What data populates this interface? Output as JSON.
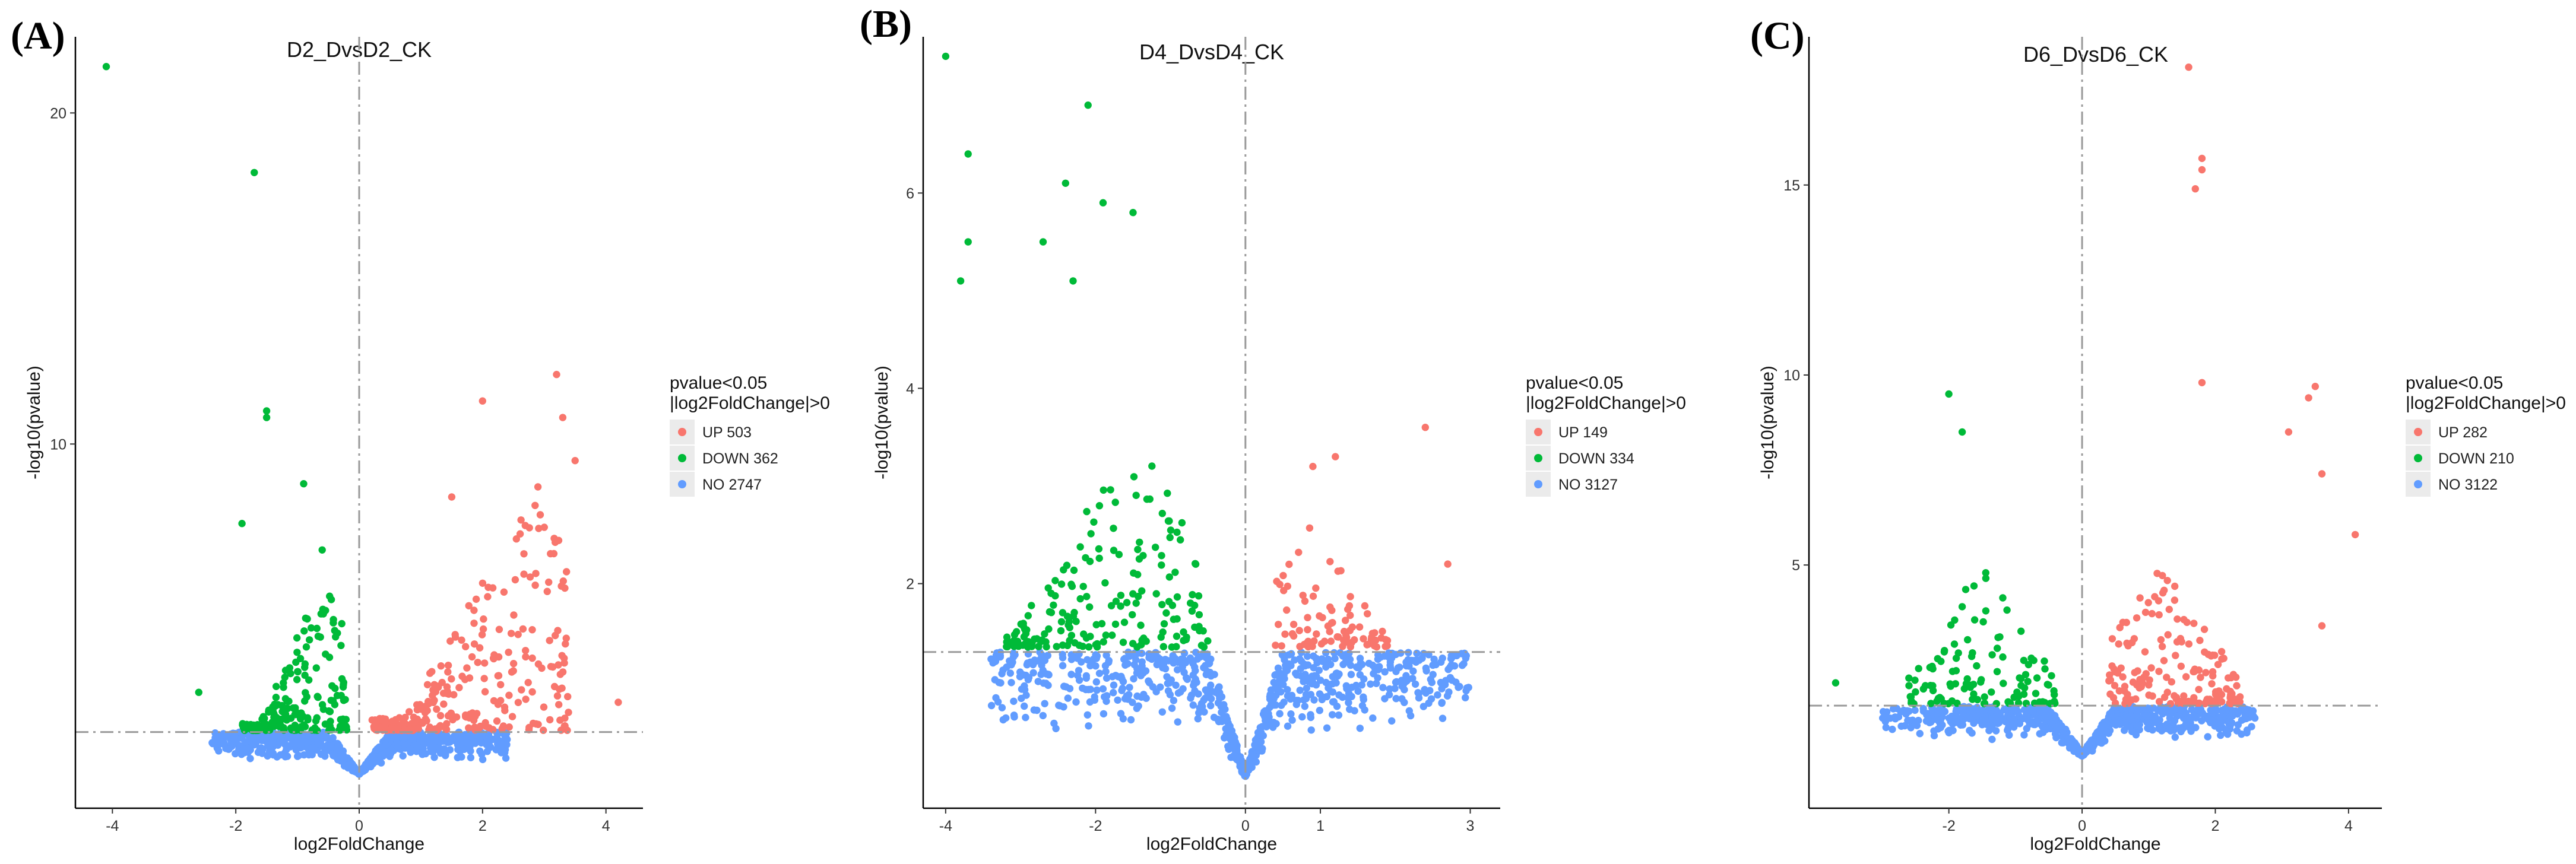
{
  "colors": {
    "up": "#F8766D",
    "down": "#00BA38",
    "no": "#619CFF",
    "threshold": "#9a9a9a",
    "legend_key_bg": "#EBEBEB"
  },
  "chart_data": [
    {
      "type": "scatter",
      "panel_label": "(A)",
      "title": "D2_DvsD2_CK",
      "xlabel": "log2FoldChange",
      "ylabel": "-log10(pvalue)",
      "xlim": [
        -4.6,
        4.6
      ],
      "ylim": [
        -1.0,
        22.3
      ],
      "xticks": [
        -4,
        -2,
        0,
        2,
        4
      ],
      "yticks": [
        10,
        20
      ],
      "pvalue_threshold": 1.3,
      "legend_title": [
        "pvalue<0.05",
        "|log2FoldChange|>0"
      ],
      "legend": [
        {
          "label": "UP 503",
          "class": "up"
        },
        {
          "label": "DOWN 362",
          "class": "down"
        },
        {
          "label": "NO 2747",
          "class": "no"
        }
      ],
      "counts": {
        "up": 503,
        "down": 362,
        "no": 2747
      },
      "sample_points": [
        [
          -4.1,
          21.4
        ],
        [
          -1.7,
          18.2
        ],
        [
          -1.5,
          11.0
        ],
        [
          -1.5,
          10.8
        ],
        [
          -0.9,
          8.8
        ],
        [
          -1.9,
          7.6
        ],
        [
          -0.6,
          6.8
        ],
        [
          -2.6,
          2.5
        ],
        [
          3.2,
          12.1
        ],
        [
          2.0,
          11.3
        ],
        [
          3.3,
          10.8
        ],
        [
          3.5,
          9.5
        ],
        [
          1.5,
          8.4
        ],
        [
          4.2,
          2.2
        ]
      ],
      "cloud": {
        "down": {
          "x": [
            -1.9,
            -0.2
          ],
          "peak_x": -0.6,
          "ymax": 6.0
        },
        "up": {
          "x": [
            0.2,
            3.4
          ],
          "peak_x": 2.9,
          "ymax": 9.0
        },
        "no": {
          "x": [
            -2.4,
            2.4
          ],
          "ymin": 0
        }
      }
    },
    {
      "type": "scatter",
      "panel_label": "(B)",
      "title": "D4_DvsD4_CK",
      "xlabel": "log2FoldChange",
      "ylabel": "-log10(pvalue)",
      "xlim": [
        -4.3,
        3.4
      ],
      "ylim": [
        -0.3,
        7.6
      ],
      "xticks": [
        -4,
        -2,
        0,
        1,
        3
      ],
      "yticks": [
        2,
        4,
        6
      ],
      "pvalue_threshold": 1.3,
      "legend_title": [
        "pvalue<0.05",
        "|log2FoldChange|>0"
      ],
      "legend": [
        {
          "label": "UP 149",
          "class": "up"
        },
        {
          "label": "DOWN 334",
          "class": "down"
        },
        {
          "label": "NO 3127",
          "class": "no"
        }
      ],
      "counts": {
        "up": 149,
        "down": 334,
        "no": 3127
      },
      "sample_points": [
        [
          -4.0,
          7.4
        ],
        [
          -2.1,
          6.9
        ],
        [
          -3.7,
          6.4
        ],
        [
          -2.4,
          6.1
        ],
        [
          -1.9,
          5.9
        ],
        [
          -1.5,
          5.8
        ],
        [
          -3.7,
          5.5
        ],
        [
          -2.7,
          5.5
        ],
        [
          -3.8,
          5.1
        ],
        [
          -2.3,
          5.1
        ],
        [
          2.4,
          3.6
        ],
        [
          1.2,
          3.3
        ],
        [
          0.9,
          3.2
        ],
        [
          2.7,
          2.2
        ]
      ],
      "cloud": {
        "down": {
          "x": [
            -3.2,
            -0.5
          ],
          "peak_x": -1.5,
          "ymax": 3.5
        },
        "up": {
          "x": [
            0.4,
            1.9
          ],
          "peak_x": 0.9,
          "ymax": 2.6
        },
        "no": {
          "x": [
            -3.4,
            3.0
          ],
          "ymin": 0
        }
      }
    },
    {
      "type": "scatter",
      "panel_label": "(C)",
      "title": "D6_DvsD6_CK",
      "xlabel": "log2FoldChange",
      "ylabel": "-log10(pvalue)",
      "xlim": [
        -4.1,
        4.5
      ],
      "ylim": [
        -1.4,
        18.9
      ],
      "xticks": [
        -2,
        0,
        2,
        4
      ],
      "yticks": [
        5,
        10,
        15
      ],
      "pvalue_threshold": 1.3,
      "legend_title": [
        "pvalue<0.05",
        "|log2FoldChange|>0"
      ],
      "legend": [
        {
          "label": "UP 282",
          "class": "up"
        },
        {
          "label": "DOWN 210",
          "class": "down"
        },
        {
          "label": "NO 3122",
          "class": "no"
        }
      ],
      "counts": {
        "up": 282,
        "down": 210,
        "no": 3122
      },
      "sample_points": [
        [
          1.6,
          18.1
        ],
        [
          1.8,
          15.7
        ],
        [
          1.8,
          15.4
        ],
        [
          1.7,
          14.9
        ],
        [
          1.8,
          9.8
        ],
        [
          3.5,
          9.7
        ],
        [
          3.4,
          9.4
        ],
        [
          3.1,
          8.5
        ],
        [
          4.1,
          5.8
        ],
        [
          3.6,
          7.4
        ],
        [
          -2.0,
          9.5
        ],
        [
          -1.8,
          8.5
        ],
        [
          -3.7,
          1.9
        ],
        [
          3.6,
          3.4
        ]
      ],
      "cloud": {
        "down": {
          "x": [
            -2.6,
            -0.4
          ],
          "peak_x": -1.5,
          "ymax": 5.0
        },
        "up": {
          "x": [
            0.4,
            2.4
          ],
          "peak_x": 1.2,
          "ymax": 5.0
        },
        "no": {
          "x": [
            -3.0,
            2.6
          ],
          "ymin": -0.5
        }
      }
    }
  ]
}
